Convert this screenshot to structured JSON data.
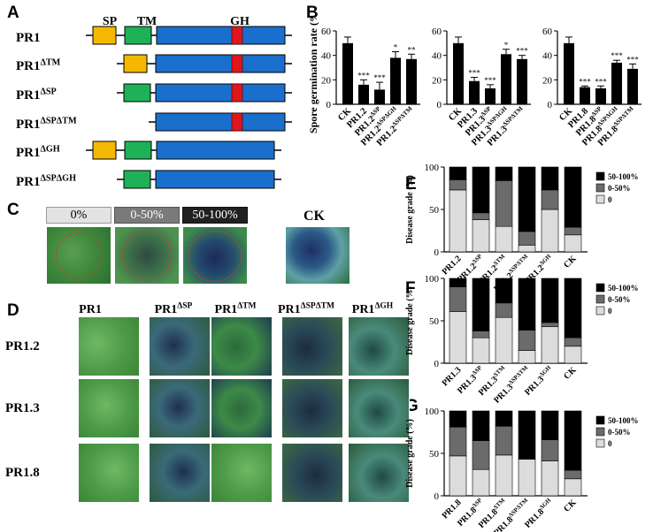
{
  "panels": {
    "A": "A",
    "B": "B",
    "C": "C",
    "D": "D",
    "E": "E",
    "F": "F",
    "G": "G"
  },
  "panel_a": {
    "domain_labels": [
      "SP",
      "TM",
      "GH"
    ],
    "constructs": [
      {
        "base": "PR1",
        "sup": ""
      },
      {
        "base": "PR1",
        "sup": "ΔTM"
      },
      {
        "base": "PR1",
        "sup": "ΔSP"
      },
      {
        "base": "PR1",
        "sup": "ΔSPΔTM"
      },
      {
        "base": "PR1",
        "sup": "ΔGH"
      },
      {
        "base": "PR1",
        "sup": "ΔSPΔGH"
      }
    ],
    "colors": {
      "sp": "#f5b800",
      "tm": "#1fb157",
      "body": "#1a6fcc",
      "gh": "#e3141b"
    }
  },
  "panel_c": {
    "grades": [
      "0%",
      "0-50%",
      "50-100%"
    ],
    "control": "CK"
  },
  "panel_d": {
    "columns": [
      {
        "base": "PR1",
        "sup": ""
      },
      {
        "base": "PR1",
        "sup": "ΔSP"
      },
      {
        "base": "PR1",
        "sup": "ΔTM"
      },
      {
        "base": "PR1",
        "sup": "ΔSPΔTM"
      },
      {
        "base": "PR1",
        "sup": "ΔGH"
      }
    ],
    "rows": [
      "PR1.2",
      "PR1.3",
      "PR1.8"
    ]
  },
  "chart_data": [
    {
      "type": "bar",
      "panel": "B-1",
      "ylabel": "Spore germination rate (%)",
      "ylim": [
        0,
        60
      ],
      "yticks": [
        0,
        20,
        40,
        60
      ],
      "categories": [
        "CK",
        "PR1.2",
        "PR1.2^ΔSP",
        "PR1.2^ΔSPΔGH",
        "PR1.2^ΔSPΔTM"
      ],
      "values": [
        50,
        16,
        12,
        38,
        37
      ],
      "errors": [
        5,
        4,
        6,
        5,
        4
      ],
      "significance": [
        "",
        "***",
        "***",
        "*",
        "**"
      ]
    },
    {
      "type": "bar",
      "panel": "B-2",
      "ylim": [
        0,
        60
      ],
      "yticks": [
        0,
        20,
        40,
        60
      ],
      "categories": [
        "CK",
        "PR1.3",
        "PR1.3^ΔSP",
        "PR1.3^ΔSPΔGH",
        "PR1.3^ΔSPΔTM"
      ],
      "values": [
        50,
        19,
        13,
        41,
        37
      ],
      "errors": [
        5,
        3,
        3,
        4,
        3
      ],
      "significance": [
        "",
        "***",
        "***",
        "*",
        "***"
      ]
    },
    {
      "type": "bar",
      "panel": "B-3",
      "ylim": [
        0,
        60
      ],
      "yticks": [
        0,
        20,
        40,
        60
      ],
      "categories": [
        "CK",
        "PR1.8",
        "PR1.8^ΔSP",
        "PR1.8^ΔSPΔGH",
        "PR1.8^ΔSPΔTM"
      ],
      "values": [
        50,
        14,
        13,
        34,
        29
      ],
      "errors": [
        5,
        1,
        2,
        2,
        4
      ],
      "significance": [
        "",
        "***",
        "***",
        "***",
        "***"
      ]
    },
    {
      "type": "bar",
      "stacked": true,
      "panel": "E",
      "ylabel": "Disease grade (%)",
      "ylim": [
        0,
        100
      ],
      "yticks": [
        0,
        50,
        100
      ],
      "categories": [
        "PR1.2",
        "PR1.2^ΔSP",
        "PR1.2^ΔTM",
        "PR1.2^ΔSPΔTM",
        "PR1.2^ΔGH",
        "CK"
      ],
      "series": [
        {
          "name": "0",
          "values": [
            73,
            38,
            30,
            8,
            50,
            20
          ]
        },
        {
          "name": "0-50%",
          "values": [
            12,
            8,
            54,
            16,
            23,
            9
          ]
        },
        {
          "name": "50-100%",
          "values": [
            15,
            54,
            16,
            76,
            27,
            71
          ]
        }
      ],
      "legend": "right"
    },
    {
      "type": "bar",
      "stacked": true,
      "panel": "F",
      "ylabel": "Disease grade (%)",
      "ylim": [
        0,
        100
      ],
      "yticks": [
        0,
        50,
        100
      ],
      "categories": [
        "PR1.3",
        "PR1.3^ΔSP",
        "PR1.3^ΔTM",
        "PR1.3^ΔSPΔTM",
        "PR1.3^ΔGH",
        "CK"
      ],
      "series": [
        {
          "name": "0",
          "values": [
            61,
            30,
            54,
            15,
            43,
            20
          ]
        },
        {
          "name": "0-50%",
          "values": [
            29,
            8,
            17,
            24,
            5,
            10
          ]
        },
        {
          "name": "50-100%",
          "values": [
            10,
            62,
            29,
            61,
            52,
            70
          ]
        }
      ],
      "legend": "right"
    },
    {
      "type": "bar",
      "stacked": true,
      "panel": "G",
      "ylabel": "Disease grade (%)",
      "ylim": [
        0,
        100
      ],
      "yticks": [
        0,
        50,
        100
      ],
      "categories": [
        "PR1.8",
        "PR1.8^ΔSP",
        "PR1.8^ΔTM",
        "PR1.8^ΔSPΔTM",
        "PR1.8^ΔGH",
        "CK"
      ],
      "series": [
        {
          "name": "0",
          "values": [
            47,
            31,
            48,
            43,
            41,
            20
          ]
        },
        {
          "name": "0-50%",
          "values": [
            34,
            34,
            34,
            0,
            25,
            10
          ]
        },
        {
          "name": "50-100%",
          "values": [
            19,
            35,
            18,
            57,
            34,
            70
          ]
        }
      ],
      "legend": "right"
    }
  ]
}
